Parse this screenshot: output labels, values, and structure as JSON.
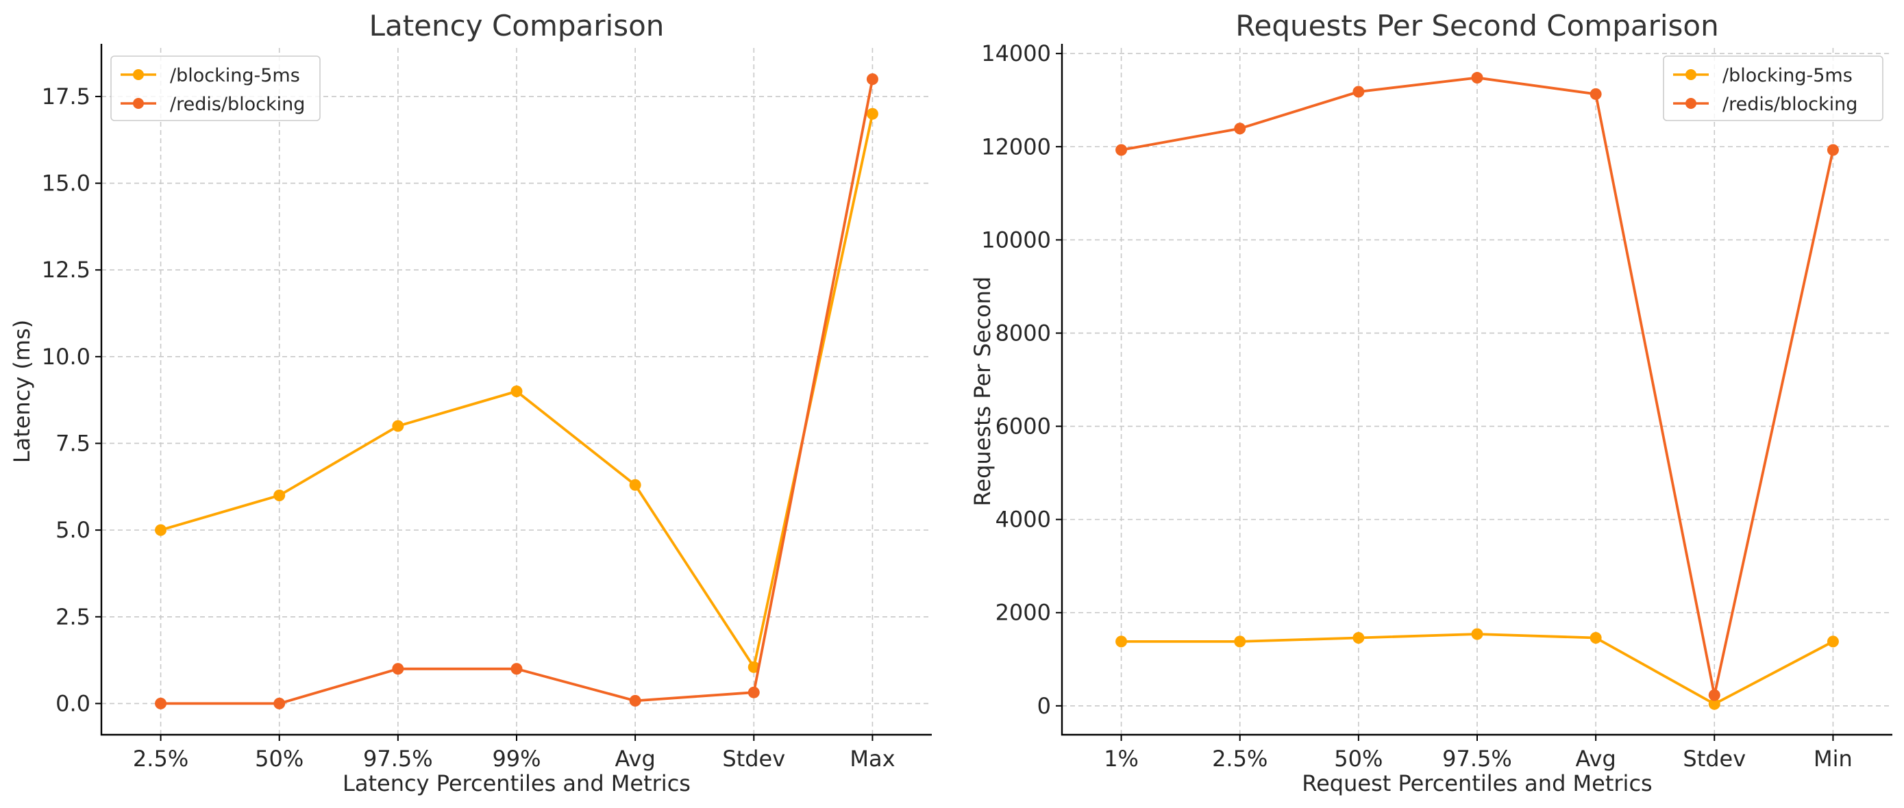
{
  "chart_data": [
    {
      "type": "line",
      "title": "Latency Comparison",
      "xlabel": "Latency Percentiles and Metrics",
      "ylabel": "Latency (ms)",
      "categories": [
        "2.5%",
        "50%",
        "97.5%",
        "99%",
        "Avg",
        "Stdev",
        "Max"
      ],
      "ylim": [
        -0.9,
        18.9
      ],
      "yticks": [
        0.0,
        2.5,
        5.0,
        7.5,
        10.0,
        12.5,
        15.0,
        17.5
      ],
      "ytick_labels": [
        "0.0",
        "2.5",
        "5.0",
        "7.5",
        "10.0",
        "12.5",
        "15.0",
        "17.5"
      ],
      "grid": true,
      "legend": "top-left",
      "series": [
        {
          "name": "/blocking-5ms",
          "color": "#FFA500",
          "values": [
            5,
            6,
            8,
            9,
            6.3,
            1.05,
            17
          ]
        },
        {
          "name": "/redis/blocking",
          "color": "#F26522",
          "values": [
            0,
            0,
            1,
            1,
            0.08,
            0.32,
            18
          ]
        }
      ]
    },
    {
      "type": "line",
      "title": "Requests Per Second Comparison",
      "xlabel": "Request Percentiles and Metrics",
      "ylabel": "Requests Per Second",
      "categories": [
        "1%",
        "2.5%",
        "50%",
        "97.5%",
        "Avg",
        "Stdev",
        "Min"
      ],
      "ylim": [
        -620,
        14120
      ],
      "yticks": [
        0,
        2000,
        4000,
        6000,
        8000,
        10000,
        12000,
        14000
      ],
      "ytick_labels": [
        "0",
        "2000",
        "4000",
        "6000",
        "8000",
        "10000",
        "12000",
        "14000"
      ],
      "grid": true,
      "legend": "top-right",
      "series": [
        {
          "name": "/blocking-5ms",
          "color": "#FFA500",
          "values": [
            1380,
            1380,
            1460,
            1540,
            1460,
            40,
            1380
          ]
        },
        {
          "name": "/redis/blocking",
          "color": "#F26522",
          "values": [
            11930,
            12390,
            13180,
            13480,
            13130,
            230,
            11930
          ]
        }
      ]
    }
  ]
}
